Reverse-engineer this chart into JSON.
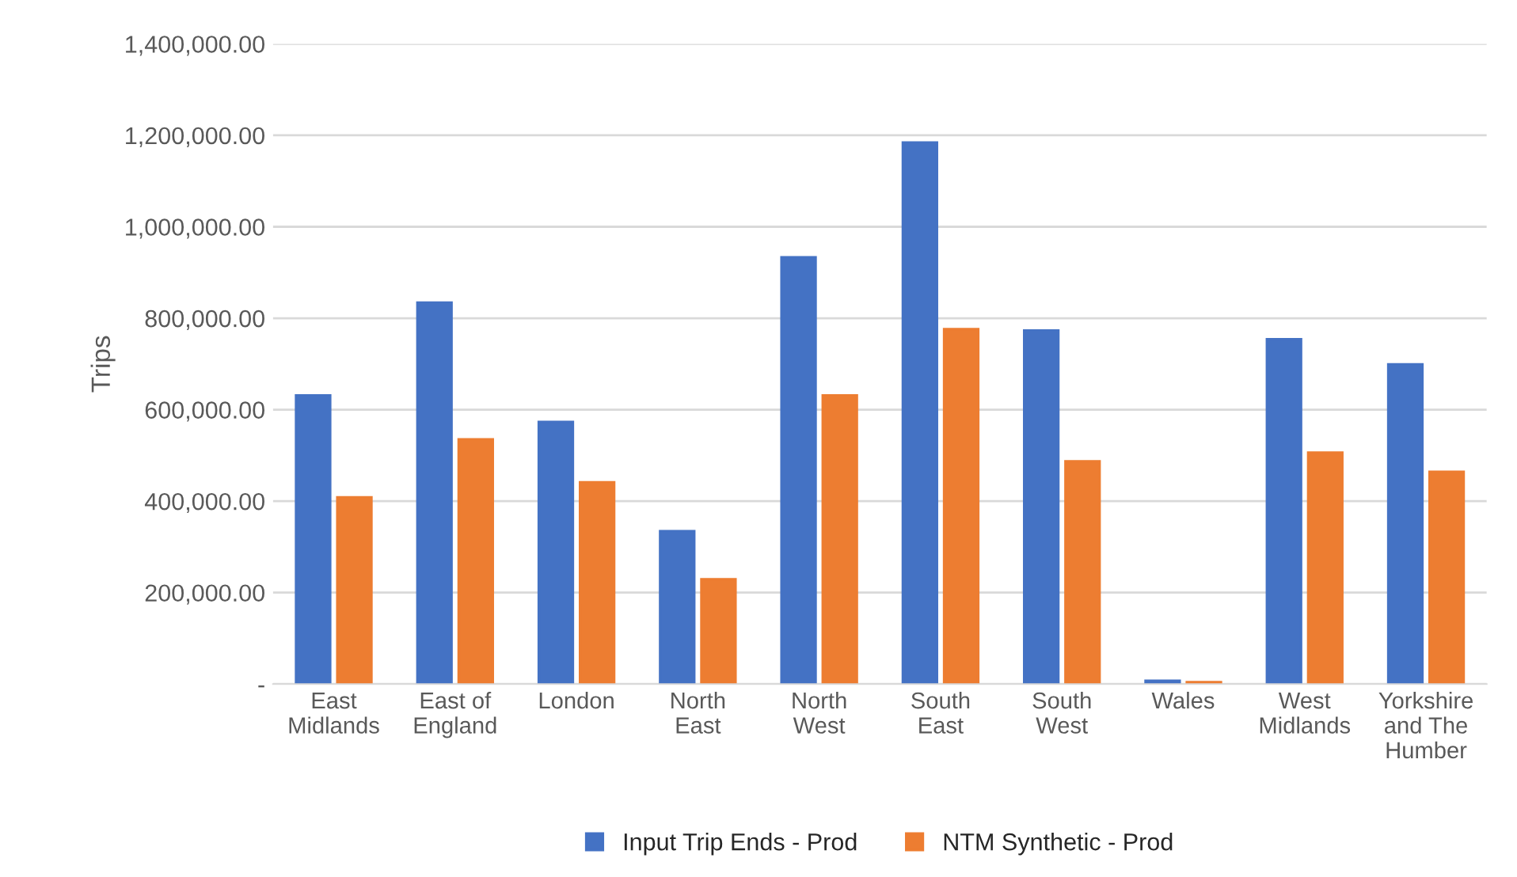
{
  "chart_data": {
    "type": "bar",
    "ylabel": "Trips",
    "categories": [
      "East Midlands",
      "East of England",
      "London",
      "North East",
      "North West",
      "South East",
      "South West",
      "Wales",
      "West Midlands",
      "Yorkshire and The Humber"
    ],
    "series": [
      {
        "name": "Input Trip Ends - Prod",
        "color": "#4472c4",
        "values": [
          631000,
          834000,
          573000,
          334000,
          933000,
          1184000,
          773000,
          7000,
          754000,
          699000
        ]
      },
      {
        "name": "NTM Synthetic - Prod",
        "color": "#ed7d31",
        "values": [
          408000,
          535000,
          441000,
          229000,
          631000,
          776000,
          487000,
          4000,
          506000,
          464000
        ]
      }
    ],
    "ylim": [
      0,
      1400000
    ],
    "yticks": [
      {
        "value": 0,
        "label": "-"
      },
      {
        "value": 200000,
        "label": "200,000.00"
      },
      {
        "value": 400000,
        "label": "400,000.00"
      },
      {
        "value": 600000,
        "label": "600,000.00"
      },
      {
        "value": 800000,
        "label": "800,000.00"
      },
      {
        "value": 1000000,
        "label": "1,000,000.00"
      },
      {
        "value": 1200000,
        "label": "1,200,000.00"
      },
      {
        "value": 1400000,
        "label": "1,400,000.00"
      }
    ],
    "grid": "y",
    "legend": "bottom"
  }
}
